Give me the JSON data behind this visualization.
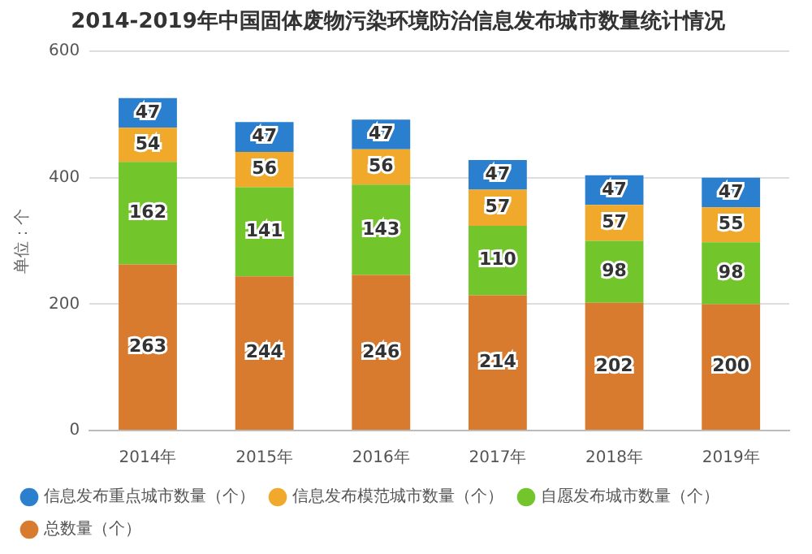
{
  "chart_data": {
    "type": "bar",
    "title": "2014-2019年中国固体废物污染环境防治信息发布城市数量统计情况",
    "ylabel": "单位：个",
    "categories": [
      "2014年",
      "2015年",
      "2016年",
      "2017年",
      "2018年",
      "2019年"
    ],
    "series": [
      {
        "name": "总数量（个）",
        "color": "#d97b2e",
        "values": [
          263,
          244,
          246,
          214,
          202,
          200
        ]
      },
      {
        "name": "自愿发布城市数量（个）",
        "color": "#72c52a",
        "values": [
          162,
          141,
          143,
          110,
          98,
          98
        ]
      },
      {
        "name": "信息发布模范城市数量（个）",
        "color": "#f1a92c",
        "values": [
          54,
          56,
          56,
          57,
          57,
          55
        ]
      },
      {
        "name": "信息发布重点城市数量（个）",
        "color": "#2a7fcf",
        "values": [
          47,
          47,
          47,
          47,
          47,
          47
        ]
      }
    ],
    "stacked": true,
    "data_labels": true,
    "ylim": [
      0,
      600
    ],
    "yticks": [
      0,
      200,
      400,
      600
    ],
    "grid": "y",
    "legend": "bottom"
  }
}
